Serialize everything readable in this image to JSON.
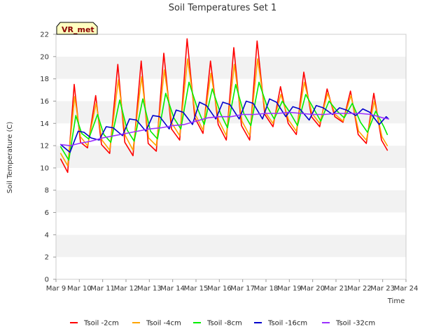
{
  "chart_data": {
    "type": "line",
    "title": "Soil Temperatures Set 1",
    "xlabel": "Time",
    "ylabel": "Soil Temperature (C)",
    "site_label": "VR_met",
    "ylim": [
      0,
      22
    ],
    "yticks": [
      0,
      2,
      4,
      6,
      8,
      10,
      12,
      14,
      16,
      18,
      20,
      22
    ],
    "xlim": [
      9,
      24
    ],
    "xticks": [
      {
        "x": 9,
        "label": "Mar 9"
      },
      {
        "x": 10,
        "label": "Mar 10"
      },
      {
        "x": 11,
        "label": "Mar 11"
      },
      {
        "x": 12,
        "label": "Mar 12"
      },
      {
        "x": 13,
        "label": "Mar 13"
      },
      {
        "x": 14,
        "label": "Mar 14"
      },
      {
        "x": 15,
        "label": "Mar 15"
      },
      {
        "x": 16,
        "label": "Mar 16"
      },
      {
        "x": 17,
        "label": "Mar 17"
      },
      {
        "x": 18,
        "label": "Mar 18"
      },
      {
        "x": 19,
        "label": "Mar 19"
      },
      {
        "x": 20,
        "label": "Mar 20"
      },
      {
        "x": 21,
        "label": "Mar 21"
      },
      {
        "x": 22,
        "label": "Mar 22"
      },
      {
        "x": 23,
        "label": "Mar 23"
      },
      {
        "x": 24,
        "label": "Mar 24"
      }
    ],
    "grid": "horizontal bands",
    "legend_position": "bottom",
    "series": [
      {
        "name": "Tsoil -2cm",
        "color": "#ff0000",
        "x": [
          9.2,
          9.5,
          9.78,
          10.05,
          10.35,
          10.7,
          10.95,
          11.3,
          11.65,
          11.95,
          12.3,
          12.65,
          12.95,
          13.3,
          13.62,
          13.95,
          14.3,
          14.62,
          14.95,
          15.3,
          15.62,
          15.95,
          16.3,
          16.62,
          16.95,
          17.3,
          17.62,
          17.95,
          18.3,
          18.62,
          18.95,
          19.3,
          19.62,
          19.95,
          20.3,
          20.62,
          20.95,
          21.3,
          21.62,
          21.95,
          22.3,
          22.62,
          22.95,
          23.2
        ],
        "y": [
          10.8,
          9.6,
          17.5,
          12.3,
          11.8,
          16.5,
          12.1,
          11.3,
          19.3,
          12.3,
          11.1,
          19.6,
          12.2,
          11.5,
          20.3,
          13.5,
          12.5,
          21.6,
          14.5,
          13.1,
          19.6,
          13.9,
          12.5,
          20.8,
          13.8,
          12.5,
          21.4,
          14.8,
          13.7,
          17.3,
          14.0,
          13.0,
          18.6,
          14.6,
          13.7,
          17.1,
          14.6,
          14.1,
          16.9,
          13.0,
          12.2,
          16.7,
          12.5,
          11.6
        ]
      },
      {
        "name": "Tsoil -4cm",
        "color": "#ffa500",
        "x": [
          9.2,
          9.5,
          9.8,
          10.05,
          10.35,
          10.72,
          10.97,
          11.3,
          11.67,
          11.97,
          12.3,
          12.67,
          12.97,
          13.3,
          13.64,
          13.97,
          14.3,
          14.64,
          14.97,
          15.3,
          15.64,
          15.97,
          16.3,
          16.64,
          16.97,
          17.3,
          17.64,
          17.97,
          18.3,
          18.64,
          18.97,
          19.3,
          19.64,
          19.97,
          20.3,
          20.64,
          20.97,
          21.3,
          21.64,
          21.97,
          22.3,
          22.64,
          22.97,
          23.2
        ],
        "y": [
          11.3,
          10.2,
          16.4,
          12.8,
          12.0,
          15.8,
          12.5,
          11.6,
          17.9,
          12.9,
          11.6,
          18.2,
          12.7,
          12.0,
          18.8,
          14.0,
          12.9,
          19.8,
          14.8,
          13.4,
          18.5,
          14.3,
          12.9,
          19.3,
          14.2,
          12.9,
          19.8,
          15.0,
          14.0,
          16.6,
          14.3,
          13.3,
          17.7,
          14.9,
          14.0,
          16.7,
          14.8,
          14.2,
          16.5,
          13.3,
          12.5,
          16.0,
          12.8,
          12.0
        ]
      },
      {
        "name": "Tsoil -8cm",
        "color": "#00ee00",
        "x": [
          9.2,
          9.55,
          9.85,
          10.1,
          10.4,
          10.78,
          11.05,
          11.35,
          11.73,
          12.05,
          12.35,
          12.72,
          13.05,
          13.35,
          13.7,
          14.05,
          14.35,
          14.7,
          15.05,
          15.35,
          15.7,
          16.05,
          16.35,
          16.7,
          17.05,
          17.35,
          17.7,
          18.05,
          18.35,
          18.7,
          19.05,
          19.35,
          19.7,
          20.05,
          20.35,
          20.7,
          21.05,
          21.35,
          21.7,
          22.05,
          22.35,
          22.7,
          23.05,
          23.2
        ],
        "y": [
          11.9,
          10.7,
          14.7,
          13.1,
          12.6,
          14.8,
          13.0,
          12.3,
          16.1,
          13.4,
          12.4,
          16.2,
          13.3,
          12.6,
          16.7,
          14.5,
          13.5,
          17.7,
          15.4,
          13.9,
          17.1,
          14.9,
          13.6,
          17.5,
          14.9,
          13.8,
          17.7,
          15.5,
          14.4,
          16.0,
          14.9,
          13.8,
          16.6,
          15.3,
          14.2,
          16.0,
          15.1,
          14.5,
          15.8,
          14.1,
          13.2,
          15.1,
          13.7,
          13.0
        ]
      },
      {
        "name": "Tsoil -16cm",
        "color": "#0000cc",
        "x": [
          9.2,
          9.6,
          9.95,
          10.2,
          10.5,
          10.85,
          11.15,
          11.45,
          11.85,
          12.15,
          12.45,
          12.85,
          13.15,
          13.45,
          13.85,
          14.15,
          14.45,
          14.85,
          15.15,
          15.45,
          15.85,
          16.15,
          16.45,
          16.85,
          17.15,
          17.45,
          17.85,
          18.15,
          18.45,
          18.85,
          19.15,
          19.45,
          19.85,
          20.15,
          20.45,
          20.85,
          21.15,
          21.45,
          21.85,
          22.15,
          22.45,
          22.85,
          23.15,
          23.25
        ],
        "y": [
          12.1,
          11.4,
          13.3,
          13.2,
          12.7,
          12.5,
          13.7,
          13.6,
          12.9,
          14.4,
          14.3,
          13.3,
          14.7,
          14.6,
          13.5,
          15.2,
          15.0,
          13.9,
          15.9,
          15.6,
          14.4,
          15.9,
          15.7,
          14.4,
          16.0,
          15.8,
          14.4,
          16.2,
          15.9,
          14.6,
          15.5,
          15.3,
          14.3,
          15.6,
          15.4,
          14.8,
          15.4,
          15.2,
          14.7,
          15.3,
          15.0,
          13.9,
          14.6,
          14.4
        ]
      },
      {
        "name": "Tsoil -32cm",
        "color": "#9b30ff",
        "x": [
          9.2,
          9.6,
          10.0,
          10.5,
          11.0,
          11.5,
          12.0,
          12.5,
          13.0,
          13.5,
          14.0,
          14.5,
          15.0,
          15.5,
          16.0,
          16.5,
          17.0,
          17.5,
          18.0,
          18.5,
          19.0,
          19.5,
          20.0,
          20.5,
          21.0,
          21.5,
          22.0,
          22.5,
          23.0,
          23.25
        ],
        "y": [
          12.1,
          12.0,
          12.2,
          12.4,
          12.7,
          12.9,
          13.1,
          13.3,
          13.5,
          13.6,
          13.8,
          13.9,
          14.2,
          14.5,
          14.6,
          14.6,
          14.8,
          14.8,
          14.9,
          14.9,
          15.0,
          14.9,
          14.8,
          14.8,
          14.9,
          14.9,
          14.9,
          14.8,
          14.5,
          14.4
        ]
      }
    ]
  }
}
